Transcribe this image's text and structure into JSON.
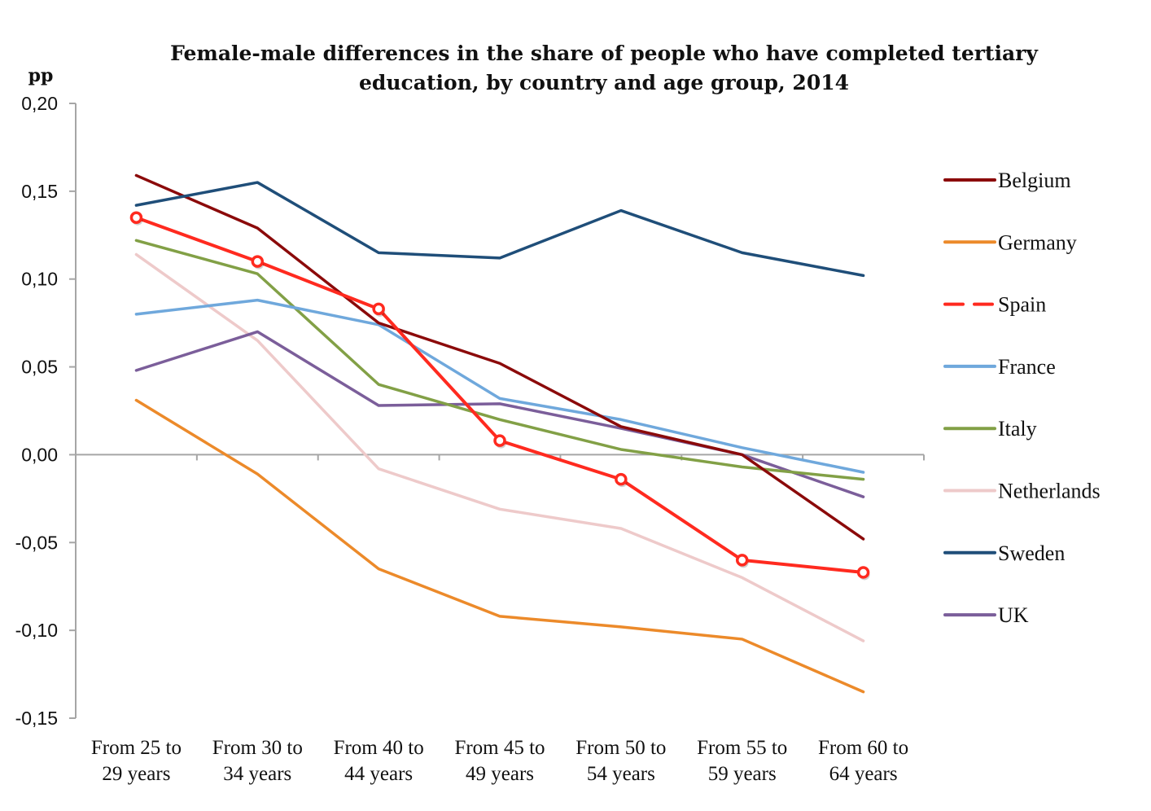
{
  "chart_data": {
    "type": "line",
    "title": "Female-male differences in the share of people who have completed tertiary education, by country and age group, 2014",
    "title_lines": [
      "Female-male differences in the share of people who have completed tertiary",
      "education, by country and age group, 2014"
    ],
    "ylabel": "pp",
    "xlabel": "",
    "ylim": [
      -0.15,
      0.2
    ],
    "yticks": [
      0.2,
      0.15,
      0.1,
      0.05,
      0.0,
      -0.05,
      -0.1,
      -0.15
    ],
    "ytick_labels": [
      "0,20",
      "0,15",
      "0,10",
      "0,05",
      "0,00",
      "-0,05",
      "-0,10",
      "-0,15"
    ],
    "categories": [
      "From 25 to 29 years",
      "From 30 to 34 years",
      "From 40 to 44 years",
      "From 45 to 49 years",
      "From 50 to 54 years",
      "From 55 to 59 years",
      "From 60 to 64 years"
    ],
    "category_lines": [
      [
        "From 25 to",
        "29 years"
      ],
      [
        "From 30 to",
        "34 years"
      ],
      [
        "From 40 to",
        "44 years"
      ],
      [
        "From 45 to",
        "49 years"
      ],
      [
        "From 50 to",
        "54 years"
      ],
      [
        "From 55 to",
        "59 years"
      ],
      [
        "From 60 to",
        "64 years"
      ]
    ],
    "grid": false,
    "legend_position": "right",
    "series": [
      {
        "name": "Belgium",
        "color": "#8B0A0A",
        "dashed": false,
        "markers": false,
        "values": [
          0.159,
          0.129,
          0.075,
          0.052,
          0.016,
          0.0,
          -0.048
        ]
      },
      {
        "name": "Germany",
        "color": "#EC8A2A",
        "dashed": false,
        "markers": false,
        "values": [
          0.031,
          -0.011,
          -0.065,
          -0.092,
          -0.098,
          -0.105,
          -0.135
        ]
      },
      {
        "name": "Spain",
        "color": "#FF2A1F",
        "dashed": true,
        "markers": true,
        "values": [
          0.135,
          0.11,
          0.083,
          0.008,
          -0.014,
          -0.06,
          -0.067
        ]
      },
      {
        "name": "France",
        "color": "#6FA8DC",
        "dashed": false,
        "markers": false,
        "values": [
          0.08,
          0.088,
          0.074,
          0.032,
          0.02,
          0.004,
          -0.01
        ]
      },
      {
        "name": "Italy",
        "color": "#82A046",
        "dashed": false,
        "markers": false,
        "values": [
          0.122,
          0.103,
          0.04,
          0.02,
          0.003,
          -0.007,
          -0.014
        ]
      },
      {
        "name": "Netherlands",
        "color": "#EECACA",
        "dashed": false,
        "markers": false,
        "values": [
          0.114,
          0.065,
          -0.008,
          -0.031,
          -0.042,
          -0.07,
          -0.106
        ]
      },
      {
        "name": "Sweden",
        "color": "#1F4E79",
        "dashed": false,
        "markers": false,
        "values": [
          0.142,
          0.155,
          0.115,
          0.112,
          0.139,
          0.115,
          0.102
        ]
      },
      {
        "name": "UK",
        "color": "#7B5E9A",
        "dashed": false,
        "markers": false,
        "values": [
          0.048,
          0.07,
          0.028,
          0.029,
          0.015,
          0.0,
          -0.024
        ]
      }
    ]
  }
}
